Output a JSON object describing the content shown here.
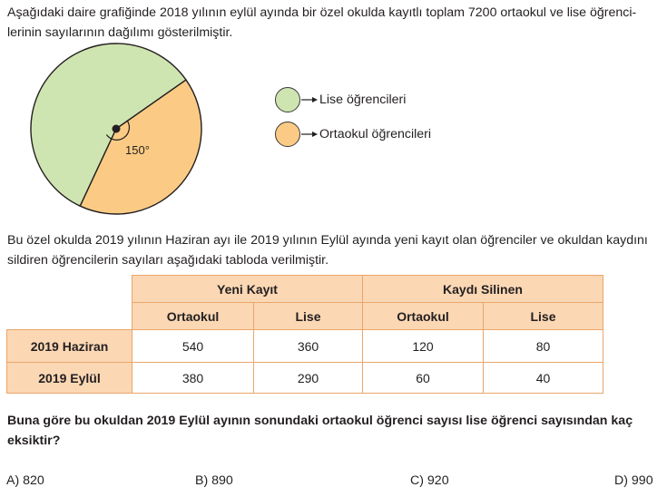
{
  "intro_text": "Aşağıdaki daire grafiğinde 2018 yılının eylül ayında bir özel okulda kayıtlı toplam 7200 ortaokul ve lise öğrenci-lerinin sayılarının dağılımı gösterilmiştir.",
  "chart_data": {
    "type": "pie",
    "title": "",
    "slices": [
      {
        "label": "Lise öğrencileri",
        "angle_deg": 210,
        "color": "#cfe5b1"
      },
      {
        "label": "Ortaokul öğrencileri",
        "angle_deg": 150,
        "color": "#fbcb85"
      }
    ],
    "angle_label": "150°"
  },
  "legend": [
    {
      "label": "Lise öğrencileri",
      "color": "#cfe5b1",
      "icon": "arrow-right-icon"
    },
    {
      "label": "Ortaokul öğrencileri",
      "color": "#fbcb85",
      "icon": "arrow-right-icon"
    }
  ],
  "mid_text": "Bu özel okulda 2019 yılının Haziran ayı ile 2019 yılının Eylül ayında yeni kayıt olan öğrenciler ve okuldan kaydını sildiren öğrencilerin sayıları aşağıdaki tabloda verilmiştir.",
  "table": {
    "group_headers": [
      "Yeni Kayıt",
      "Kaydı Silinen"
    ],
    "sub_headers": [
      "Ortaokul",
      "Lise",
      "Ortaokul",
      "Lise"
    ],
    "rows": [
      {
        "label": "2019 Haziran",
        "values": [
          "540",
          "360",
          "120",
          "80"
        ]
      },
      {
        "label": "2019 Eylül",
        "values": [
          "380",
          "290",
          "60",
          "40"
        ]
      }
    ]
  },
  "question": "Buna göre bu okuldan 2019 Eylül ayının sonundaki ortaokul öğrenci sayısı lise öğrenci sayısından kaç eksiktir?",
  "answers": [
    "A) 820",
    "B) 890",
    "C) 920",
    "D) 990"
  ],
  "colors": {
    "lise": "#cfe5b1",
    "ortaokul": "#fbcb85",
    "table_header": "#fbd7b4",
    "table_border": "#e9a66b"
  }
}
